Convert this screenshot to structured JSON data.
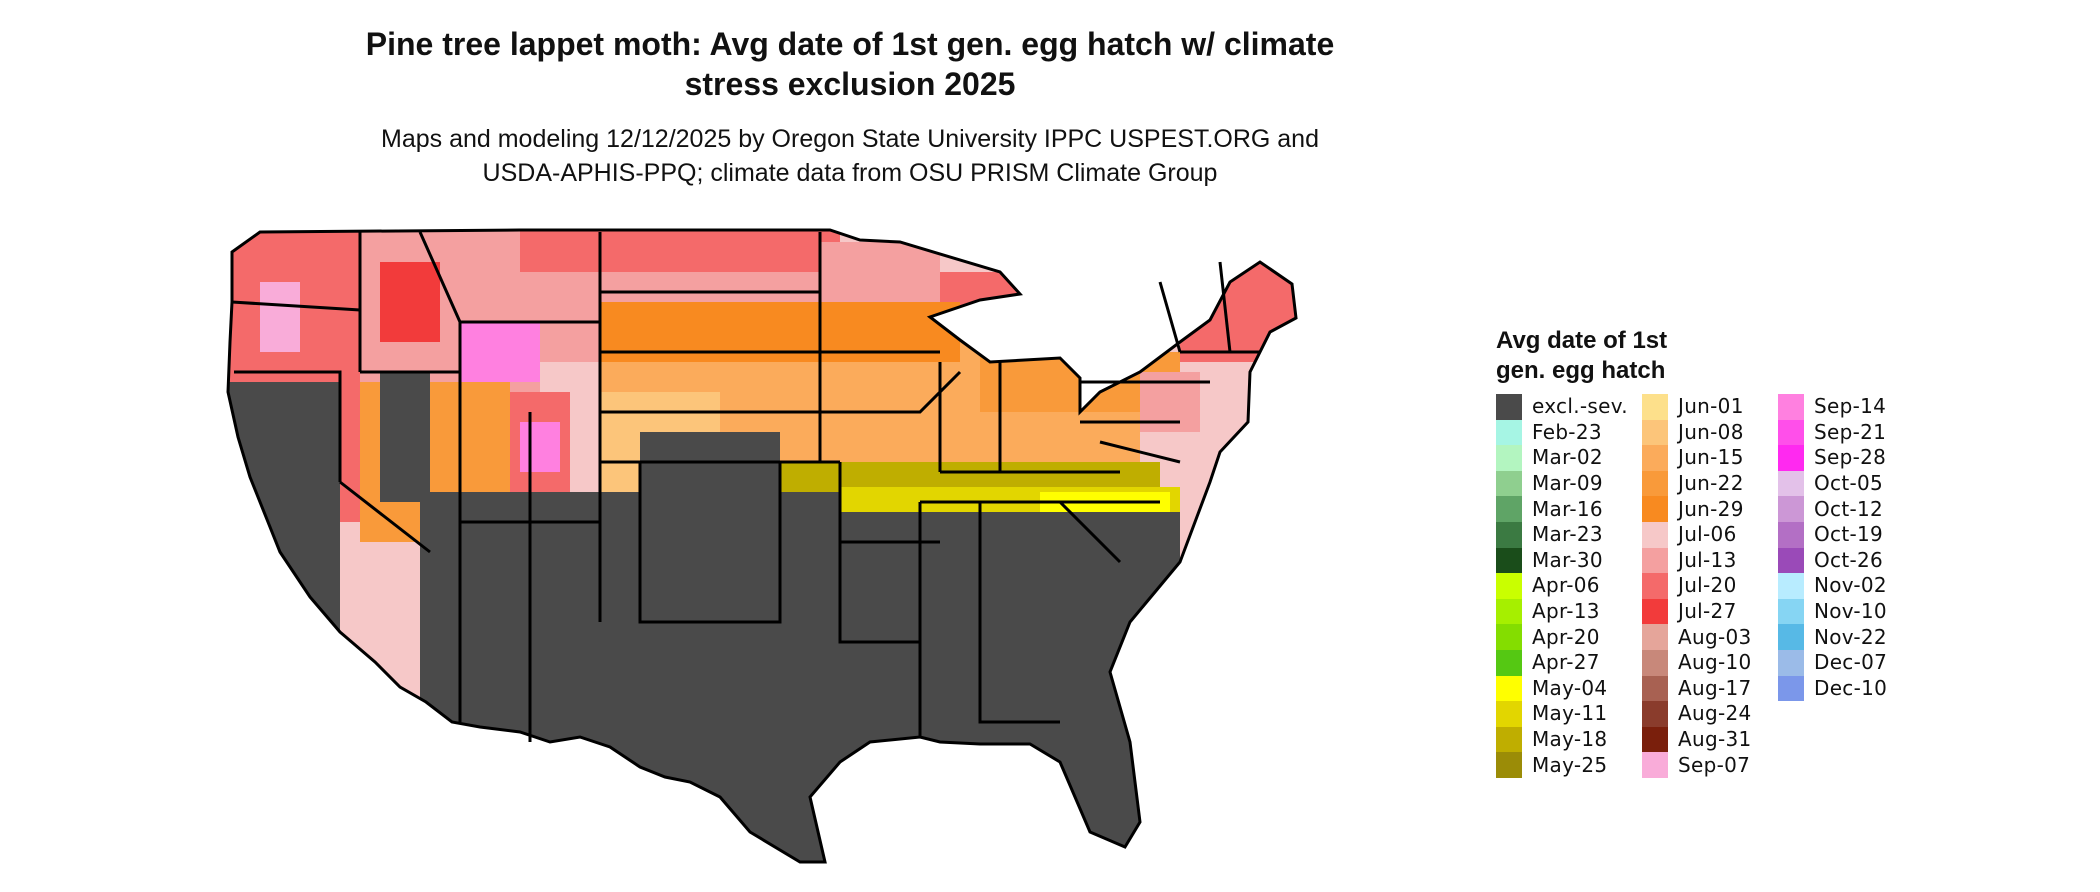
{
  "title_line1": "Pine tree lappet moth: Avg date of 1st gen. egg hatch w/ climate",
  "title_line2": "stress exclusion 2025",
  "subtitle_line1": "Maps and modeling 12/12/2025 by Oregon State University IPPC USPEST.ORG and",
  "subtitle_line2": "USDA-APHIS-PPQ; climate data from OSU PRISM Climate Group",
  "legend": {
    "title_line1": "Avg date of 1st",
    "title_line2": "gen. egg hatch",
    "items": [
      {
        "label": "excl.-sev.",
        "color": "#4a4a4a"
      },
      {
        "label": "Feb-23",
        "color": "#a6f5e4"
      },
      {
        "label": "Mar-02",
        "color": "#b3f5c0"
      },
      {
        "label": "Mar-09",
        "color": "#8fcf8f"
      },
      {
        "label": "Mar-16",
        "color": "#5fa466"
      },
      {
        "label": "Mar-23",
        "color": "#3b7a42"
      },
      {
        "label": "Mar-30",
        "color": "#1a4d1a"
      },
      {
        "label": "Apr-06",
        "color": "#c9ff00"
      },
      {
        "label": "Apr-13",
        "color": "#a6ef00"
      },
      {
        "label": "Apr-20",
        "color": "#84dd00"
      },
      {
        "label": "Apr-27",
        "color": "#55c813"
      },
      {
        "label": "May-04",
        "color": "#ffff00"
      },
      {
        "label": "May-11",
        "color": "#e2d600"
      },
      {
        "label": "May-18",
        "color": "#bfae00"
      },
      {
        "label": "May-25",
        "color": "#9b8c07"
      },
      {
        "label": "Jun-01",
        "color": "#fde08b"
      },
      {
        "label": "Jun-08",
        "color": "#fcc57a"
      },
      {
        "label": "Jun-15",
        "color": "#fbab5b"
      },
      {
        "label": "Jun-22",
        "color": "#f99a3a"
      },
      {
        "label": "Jun-29",
        "color": "#f88a20"
      },
      {
        "label": "Jul-06",
        "color": "#f6c8c8"
      },
      {
        "label": "Jul-13",
        "color": "#f4a0a0"
      },
      {
        "label": "Jul-20",
        "color": "#f46a6a"
      },
      {
        "label": "Jul-27",
        "color": "#f23b3b"
      },
      {
        "label": "Aug-03",
        "color": "#e5a59a"
      },
      {
        "label": "Aug-10",
        "color": "#c8887a"
      },
      {
        "label": "Aug-17",
        "color": "#a86152"
      },
      {
        "label": "Aug-24",
        "color": "#8a3c2c"
      },
      {
        "label": "Aug-31",
        "color": "#7a1f0c"
      },
      {
        "label": "Sep-07",
        "color": "#f9acd9"
      },
      {
        "label": "Sep-14",
        "color": "#ff80e0"
      },
      {
        "label": "Sep-21",
        "color": "#ff4fea"
      },
      {
        "label": "Sep-28",
        "color": "#ff29f0"
      },
      {
        "label": "Oct-05",
        "color": "#e3c1e9"
      },
      {
        "label": "Oct-12",
        "color": "#cc97d6"
      },
      {
        "label": "Oct-19",
        "color": "#b36fc5"
      },
      {
        "label": "Oct-26",
        "color": "#9a4ab8"
      },
      {
        "label": "Nov-02",
        "color": "#b8ecff"
      },
      {
        "label": "Nov-10",
        "color": "#86d5f3"
      },
      {
        "label": "Nov-22",
        "color": "#57b9e6"
      },
      {
        "label": "Dec-07",
        "color": "#9bbbe8"
      },
      {
        "label": "Dec-10",
        "color": "#7b97ea"
      }
    ]
  },
  "map_colors": {
    "excluded": "#4a4a4a",
    "state_border": "#000000"
  }
}
